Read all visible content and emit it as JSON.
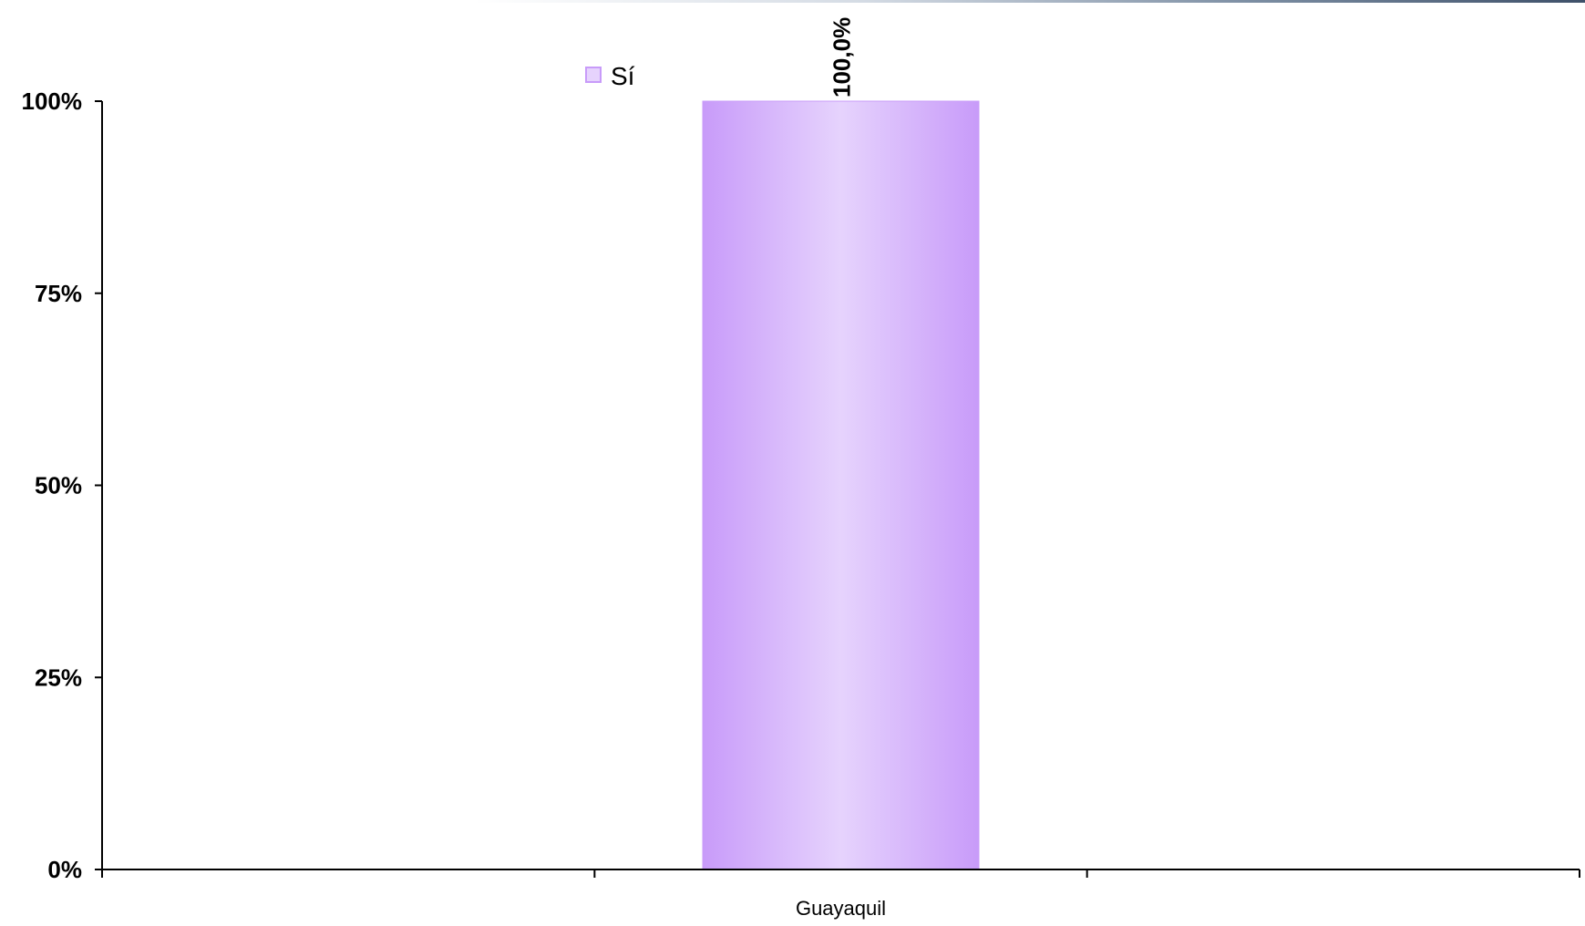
{
  "chart_data": {
    "type": "bar",
    "categories": [
      "Guayaquil"
    ],
    "series": [
      {
        "name": "Sí",
        "values": [
          100.0
        ],
        "color": "#c89bf9",
        "highlight_color": "#e6d3fd",
        "data_labels": [
          "100,0%"
        ]
      }
    ],
    "y_ticks": [
      {
        "value": 0,
        "label": "0%"
      },
      {
        "value": 25,
        "label": "25%"
      },
      {
        "value": 50,
        "label": "50%"
      },
      {
        "value": 75,
        "label": "75%"
      },
      {
        "value": 100,
        "label": "100%"
      }
    ],
    "ylim": [
      0,
      100
    ],
    "x_divisions": 3,
    "grid": false,
    "legend_position": "top"
  }
}
